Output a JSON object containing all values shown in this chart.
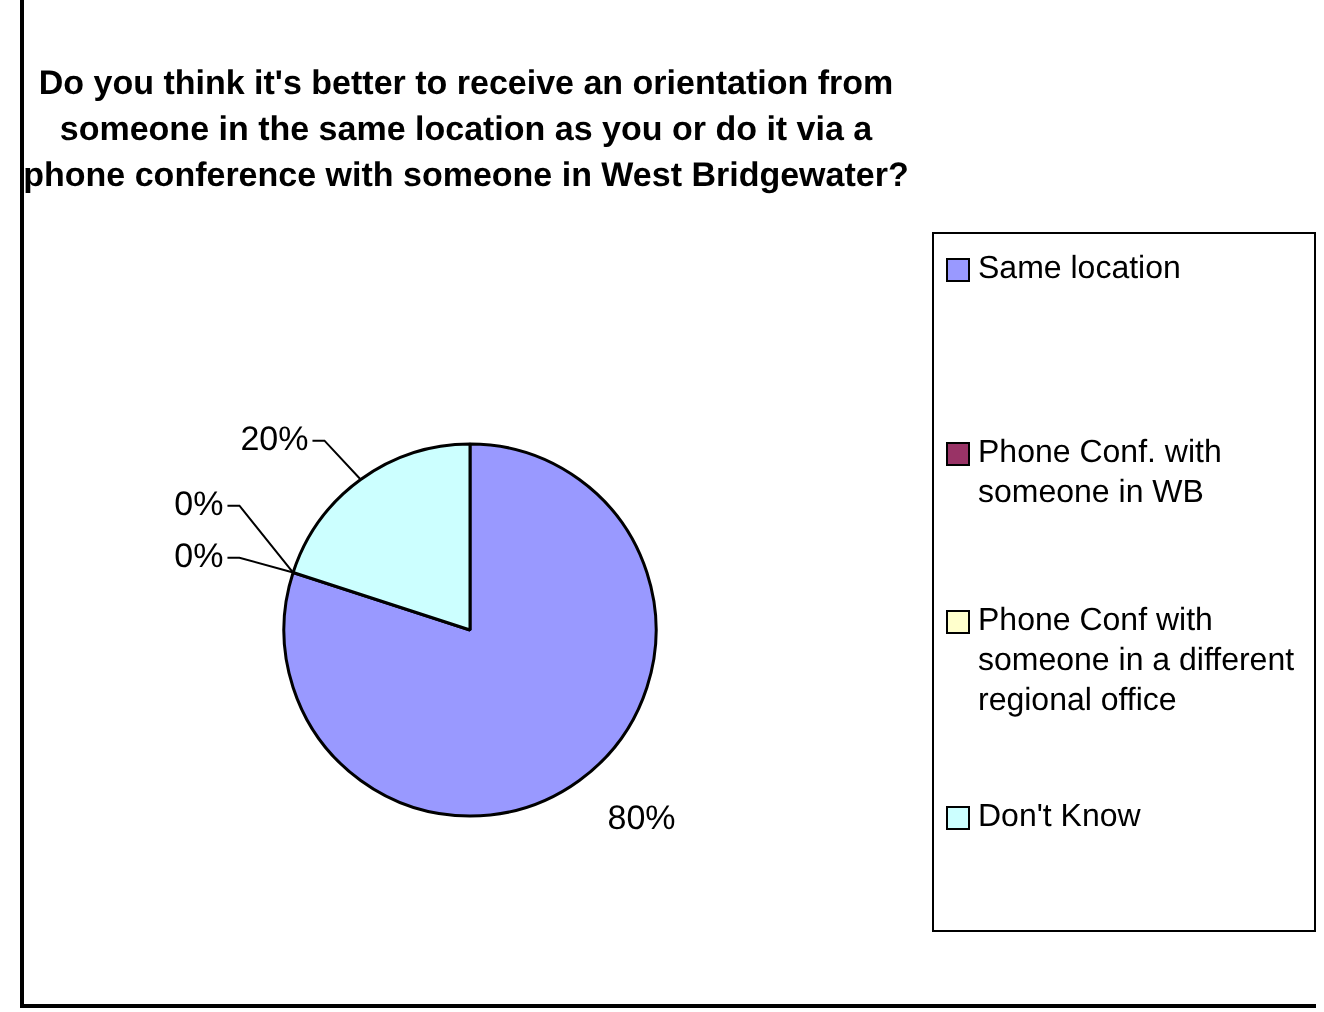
{
  "chart_data": {
    "type": "pie",
    "title": "Do you think it's better to receive an orientation from someone in the same location as you or do it via a phone conference with someone in West Bridgewater?",
    "categories": [
      "Same location",
      "Phone Conf. with someone in WB",
      "Phone Conf with someone in a different regional office",
      "Don't Know"
    ],
    "values": [
      80,
      0,
      0,
      20
    ],
    "value_labels": [
      "80%",
      "0%",
      "0%",
      "20%"
    ],
    "colors": [
      "#9999ff",
      "#993366",
      "#ffffcc",
      "#ccffff"
    ],
    "legend": "right"
  }
}
